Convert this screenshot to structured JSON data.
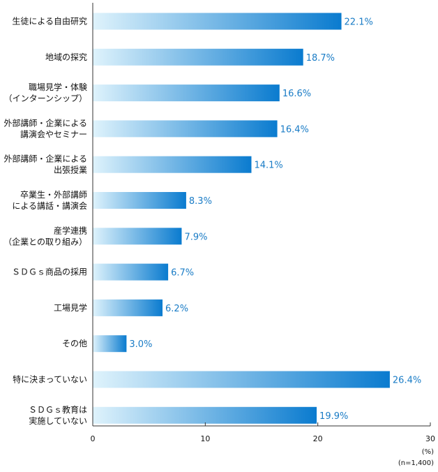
{
  "chart_data": {
    "type": "bar",
    "orientation": "horizontal",
    "categories": [
      [
        "生徒による自由研究"
      ],
      [
        "地域の探究"
      ],
      [
        "職場見学・体験",
        "（インターンシップ）"
      ],
      [
        "外部講師・企業による",
        "講演会やセミナー"
      ],
      [
        "外部講師・企業による",
        "出張授業"
      ],
      [
        "卒業生・外部講師",
        "による講話・講演会"
      ],
      [
        "産学連携",
        "（企業との取り組み）"
      ],
      [
        "ＳＤＧｓ商品の採用"
      ],
      [
        "工場見学"
      ],
      [
        "その他"
      ],
      [
        "特に決まっていない"
      ],
      [
        "ＳＤＧｓ教育は",
        "実施していない"
      ]
    ],
    "values": [
      22.1,
      18.7,
      16.6,
      16.4,
      14.1,
      8.3,
      7.9,
      6.7,
      6.2,
      3.0,
      26.4,
      19.9
    ],
    "value_labels": [
      "22.1%",
      "18.7%",
      "16.6%",
      "16.4%",
      "14.1%",
      "8.3%",
      "7.9%",
      "6.7%",
      "6.2%",
      "3.0%",
      "26.4%",
      "19.9%"
    ],
    "xlim": [
      0,
      30
    ],
    "x_ticks": [
      0,
      10,
      20,
      30
    ],
    "unit": "(%)",
    "note": "(n=1,400)",
    "grid": false,
    "colors": {
      "bar_start": "#dff3fc",
      "bar_end": "#0a7bcf",
      "value_text": "#1a7cc6",
      "axis": "#333333"
    }
  }
}
